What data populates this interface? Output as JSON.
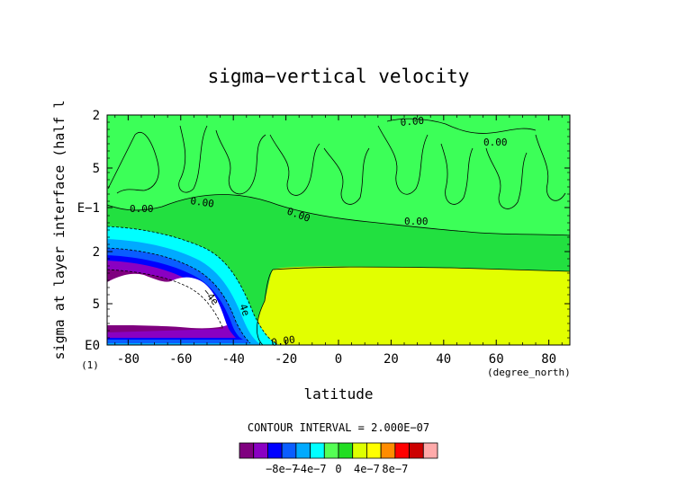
{
  "chart_data": {
    "type": "contour",
    "title": "sigma−vertical velocity",
    "xlabel": "latitude",
    "x_unit": "(degree_north)",
    "ylabel": "sigma at layer interface (half l",
    "y_unit": "(1)",
    "xlim": [
      -88,
      88
    ],
    "x_ticks": [
      "-80",
      "-60",
      "-40",
      "-20",
      "0",
      "20",
      "40",
      "60",
      "80"
    ],
    "x_tick_values": [
      -80,
      -60,
      -40,
      -20,
      0,
      20,
      40,
      60,
      80
    ],
    "y_tick_labels": [
      "2",
      "5",
      "E−1",
      "2",
      "5",
      "E0"
    ],
    "y_scale": "log",
    "contour_labels": [
      "0.00",
      "0.00",
      "0.00",
      "0.00",
      "0.00",
      "0.00",
      "0.00",
      "−4e",
      "4e"
    ],
    "contour_interval_text": "CONTOUR INTERVAL = 2.000E−07",
    "colorbar": {
      "colors": [
        "#7f007f",
        "#8a00c2",
        "#0000ff",
        "#0a5dff",
        "#00aaff",
        "#00ffff",
        "#55ff55",
        "#22dd22",
        "#ddff00",
        "#ffff00",
        "#ff8c00",
        "#ff0000",
        "#cc0000",
        "#ffaaaa"
      ],
      "tick_labels": [
        "−8e−7",
        "−4e−7",
        "0",
        "4e−7",
        "8e−7"
      ],
      "tick_values": [
        -8e-07,
        -4e-07,
        0,
        4e-07,
        8e-07
      ]
    },
    "features": [
      {
        "name": "white region (below −1e−6)",
        "lat_range": [
          -88,
          -45
        ],
        "color": "#ffffff"
      },
      {
        "name": "positive region 0 to 2e−7",
        "lat_range": [
          -22,
          88
        ],
        "color": "#e2ff00"
      }
    ]
  }
}
